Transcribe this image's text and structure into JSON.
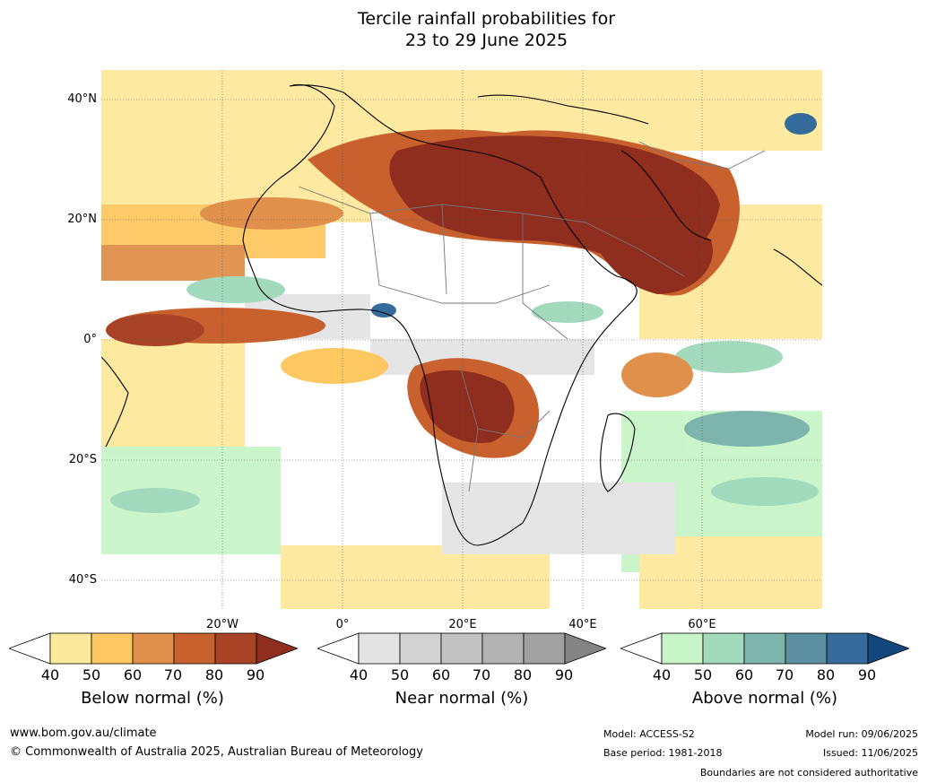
{
  "title": [
    "Tercile rainfall probabilities for",
    "23 to 29 June 2025"
  ],
  "lat_labels": [
    "40°N",
    "20°N",
    "0°",
    "20°S",
    "40°S"
  ],
  "lon_labels": [
    "20°W",
    "0°",
    "20°E",
    "40°E",
    "60°E"
  ],
  "colorbars": [
    {
      "label": "Below normal (%)",
      "ticks": [
        "40",
        "50",
        "60",
        "70",
        "80",
        "90"
      ],
      "colors": [
        "#ffffff",
        "#fde99b",
        "#fdc862",
        "#e0904a",
        "#c9612f",
        "#a84425",
        "#8f2e1e"
      ]
    },
    {
      "label": "Near normal (%)",
      "ticks": [
        "40",
        "50",
        "60",
        "70",
        "80",
        "90"
      ],
      "colors": [
        "#ffffff",
        "#e4e4e4",
        "#d2d2d2",
        "#c2c2c2",
        "#b2b2b2",
        "#a1a1a1",
        "#848484"
      ]
    },
    {
      "label": "Above normal (%)",
      "ticks": [
        "40",
        "50",
        "60",
        "70",
        "80",
        "90"
      ],
      "colors": [
        "#ffffff",
        "#c8f5c8",
        "#a3d9bd",
        "#7db5ad",
        "#5c8fa0",
        "#356b9a",
        "#13467c"
      ]
    }
  ],
  "footer": {
    "website": "www.bom.gov.au/climate",
    "copyright": "© Commonwealth of Australia 2025, Australian Bureau of Meteorology",
    "model": "Model: ACCESS-S2",
    "base_period": "Base period: 1981-2018",
    "model_run": "Model run: 09/06/2025",
    "issued": "Issued: 11/06/2025",
    "disclaimer": "Boundaries are not considered authoritative"
  }
}
